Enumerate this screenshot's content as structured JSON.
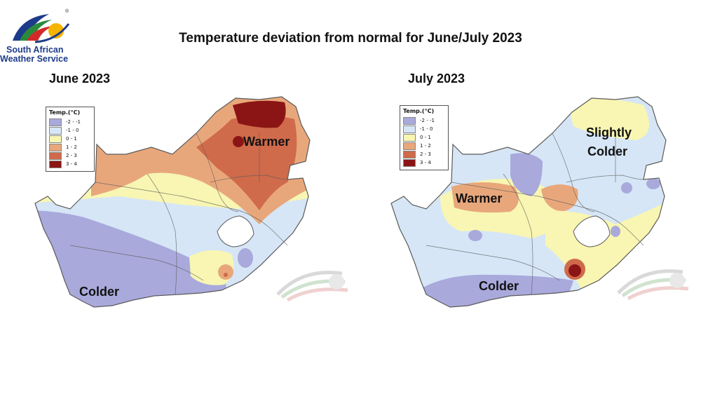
{
  "logo": {
    "line1": "South African",
    "line2": "Weather Service",
    "reg_mark": "®"
  },
  "title": "Temperature deviation from normal for June/July 2023",
  "colors": {
    "c_m2": "#a9a9dc",
    "c_m1": "#d6e6f6",
    "c_0": "#f8f6b2",
    "c_1": "#e8a77b",
    "c_2": "#cf6a4b",
    "c_3": "#8b1515",
    "border": "#5a5a5a"
  },
  "panels": [
    {
      "title": "June 2023",
      "legend_title": "Temp.(°C)",
      "legend": [
        {
          "label": "-2 - -1",
          "color": "#a9a9dc"
        },
        {
          "label": "-1 - 0",
          "color": "#d6e6f6"
        },
        {
          "label": "0 - 1",
          "color": "#f8f6b2"
        },
        {
          "label": "1 - 2",
          "color": "#e8a77b"
        },
        {
          "label": "2 - 3",
          "color": "#cf6a4b"
        },
        {
          "label": "3 - 4",
          "color": "#8b1515"
        }
      ],
      "labels": [
        "Warmer",
        "Colder"
      ]
    },
    {
      "title": "July 2023",
      "legend_title": "Temp.(°C)",
      "legend": [
        {
          "label": "-2 - -1",
          "color": "#a9a9dc"
        },
        {
          "label": "-1 - 0",
          "color": "#d6e6f6"
        },
        {
          "label": "0 - 1",
          "color": "#f8f6b2"
        },
        {
          "label": "1 - 2",
          "color": "#e8a77b"
        },
        {
          "label": "2 - 3",
          "color": "#cf6a4b"
        },
        {
          "label": "3 - 4",
          "color": "#8b1515"
        }
      ],
      "labels": [
        "Slightly",
        "Colder",
        "Warmer",
        "Colder"
      ]
    }
  ]
}
